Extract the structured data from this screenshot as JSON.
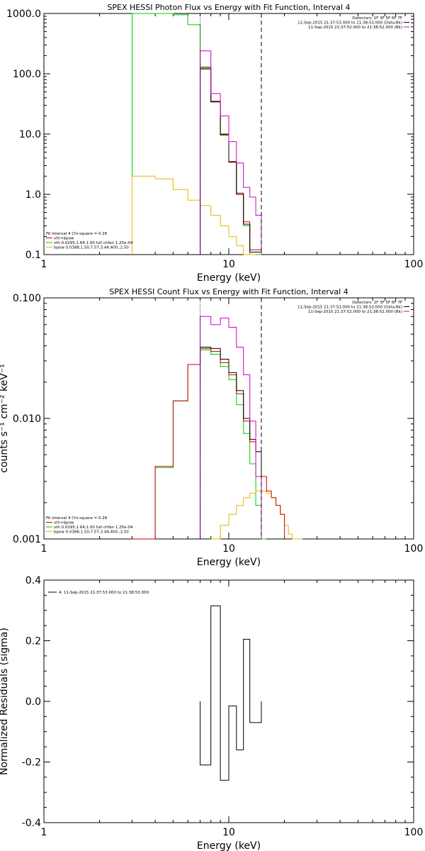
{
  "colors": {
    "model": "#000000",
    "sum": "#cc0000",
    "vth": "#00cc00",
    "bpow": "#e6b800",
    "data": "#cc00cc",
    "bk": "#000000"
  },
  "chart_data": [
    {
      "type": "line",
      "title": "SPEX HESSI Photon Flux vs Energy with Fit Function, Interval 4",
      "xlabel": "Energy (keV)",
      "ylabel": "",
      "xscale": "log",
      "yscale": "log",
      "xlim": [
        1,
        100
      ],
      "ylim": [
        0.1,
        1000
      ],
      "xticks": [
        "1",
        "10",
        "100"
      ],
      "yticks": [
        "0.1",
        "1.0",
        "10.0",
        "100.0",
        "1000.0"
      ],
      "vlines": [
        7,
        15
      ],
      "header_lines": [
        "Detectors: 1F 3F 5F 6F 7F",
        "11-Sep-2015 21:37:53.000 to 21:38:53.000 (Data-Bk)",
        "11-Sep-2015 21:37:52.000 to 21:38:52.000 (Bk)"
      ],
      "legend": [
        "Fit Interval 4   Chi-square = 0.28",
        "vth+bpow",
        "vth 0.0295,1.64,1.00  full chfan 1.25e-04",
        "bpow 0.0388,1.50,7.57,3.44,400.,2.50"
      ],
      "series": [
        {
          "name": "vth",
          "color_key": "vth",
          "edges": [
            3,
            4,
            5,
            6,
            7,
            8,
            9,
            10,
            11,
            12,
            13,
            14,
            15
          ],
          "values": [
            1000,
            1000,
            950,
            650,
            130,
            35,
            9.5,
            3.5,
            1.0,
            0.3,
            0.1,
            0.1
          ]
        },
        {
          "name": "bpow",
          "color_key": "bpow",
          "edges": [
            3,
            4,
            5,
            6,
            7,
            8,
            9,
            10,
            11,
            12,
            13,
            14
          ],
          "values": [
            2.0,
            1.8,
            1.2,
            0.8,
            0.65,
            0.45,
            0.3,
            0.2,
            0.14,
            0.1,
            0.1
          ]
        },
        {
          "name": "vth+bpow",
          "color_key": "sum",
          "edges": [
            7,
            8,
            9,
            10,
            11,
            12,
            13,
            14,
            15
          ],
          "values": [
            125,
            35,
            10,
            3.5,
            1.05,
            0.35,
            0.12,
            0.12
          ]
        },
        {
          "name": "model",
          "color_key": "model",
          "edges": [
            7,
            8,
            9,
            10,
            11,
            12,
            13,
            14,
            15
          ],
          "values": [
            120,
            34,
            9.8,
            3.4,
            1.0,
            0.32,
            0.11,
            0.11
          ]
        },
        {
          "name": "data",
          "color_key": "data",
          "edges": [
            7,
            8,
            9,
            10,
            11,
            12,
            13,
            14,
            15
          ],
          "values": [
            240,
            47,
            20,
            7.5,
            3.3,
            1.3,
            0.9,
            0.45
          ]
        }
      ]
    },
    {
      "type": "line",
      "title": "SPEX HESSI Count Flux vs Energy with Fit Function, Interval 4",
      "xlabel": "Energy (keV)",
      "ylabel": "counts s⁻¹ cm⁻² keV⁻¹",
      "xscale": "log",
      "yscale": "log",
      "xlim": [
        1,
        100
      ],
      "ylim": [
        0.001,
        0.1
      ],
      "xticks": [
        "1",
        "10",
        "100"
      ],
      "yticks": [
        "0.001",
        "0.010",
        "0.100"
      ],
      "vlines": [
        7,
        15
      ],
      "header_lines": [
        "Detectors: 1F 3F 5F 6F 7F",
        "11-Sep-2015 21:37:53.000 to 21:38:53.000 (Data-Bk)",
        "11-Sep-2015 21:37:52.000 to 21:38:52.000 (Bk)"
      ],
      "legend": [
        "Fit Interval 4   Chi-square = 0.28",
        "vth+bpow",
        "vth 0.0295,1.64,1.00  full chfan 1.25e-04",
        "bpow 0.0388,1.50,7.57,3.44,400.,2.50"
      ],
      "series": [
        {
          "name": "vth",
          "color_key": "vth",
          "edges": [
            3,
            4,
            5,
            6,
            7,
            8,
            9,
            10,
            11,
            12,
            13,
            14,
            15,
            16
          ],
          "values": [
            0.001,
            0.0039,
            0.014,
            0.028,
            0.037,
            0.034,
            0.027,
            0.021,
            0.013,
            0.0075,
            0.0042,
            0.0019,
            0.001
          ]
        },
        {
          "name": "bpow",
          "color_key": "bpow",
          "edges": [
            8,
            9,
            10,
            11,
            12,
            13,
            14,
            15,
            16,
            17,
            18,
            19,
            20,
            21,
            22,
            23,
            24,
            25
          ],
          "values": [
            0.001,
            0.0013,
            0.0016,
            0.0019,
            0.0022,
            0.0024,
            0.0025,
            0.0025,
            0.0024,
            0.0022,
            0.0019,
            0.0016,
            0.0013,
            0.0011,
            0.001,
            0.001,
            0.001
          ]
        },
        {
          "name": "vth+bpow",
          "color_key": "sum",
          "edges": [
            3,
            4,
            5,
            6,
            7,
            8,
            9,
            10,
            11,
            12,
            13,
            14,
            15,
            16,
            17,
            18,
            19,
            20
          ],
          "values": [
            0.001,
            0.004,
            0.014,
            0.028,
            0.038,
            0.036,
            0.029,
            0.023,
            0.016,
            0.0095,
            0.0064,
            0.0053,
            0.0033,
            0.0025,
            0.0022,
            0.0019,
            0.0016
          ]
        },
        {
          "name": "model",
          "color_key": "model",
          "edges": [
            7,
            8,
            9,
            10,
            11,
            12,
            13,
            14,
            15
          ],
          "values": [
            0.039,
            0.038,
            0.031,
            0.024,
            0.017,
            0.01,
            0.0067,
            0.0053
          ]
        },
        {
          "name": "data",
          "color_key": "data",
          "edges": [
            7,
            8,
            9,
            10,
            11,
            12,
            13,
            14,
            15
          ],
          "values": [
            0.07,
            0.06,
            0.068,
            0.057,
            0.039,
            0.023,
            0.0095,
            0.0033
          ]
        }
      ]
    },
    {
      "type": "line",
      "title": "",
      "xlabel": "Energy (keV)",
      "ylabel": "Normalized Residuals (sigma)",
      "xscale": "log",
      "yscale": "linear",
      "xlim": [
        1,
        100
      ],
      "ylim": [
        -0.4,
        0.4
      ],
      "xticks": [
        "1",
        "10",
        "100"
      ],
      "yticks": [
        "-0.4",
        "-0.2",
        "0.0",
        "0.2",
        "0.4"
      ],
      "legend": [
        "4. 11-Sep-2015 21:37:53.000 to 21:38:53.000"
      ],
      "series": [
        {
          "name": "residuals",
          "color_key": "model",
          "edges": [
            7,
            8,
            9,
            10,
            11,
            12,
            13,
            14,
            15
          ],
          "values": [
            -0.21,
            0.315,
            -0.26,
            -0.015,
            -0.16,
            0.205,
            -0.07,
            -0.07
          ]
        }
      ]
    }
  ]
}
